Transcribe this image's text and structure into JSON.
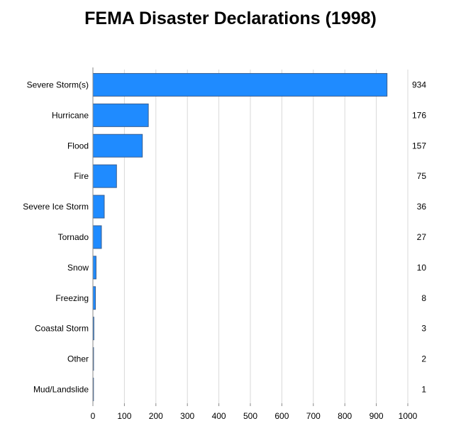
{
  "chart_data": {
    "type": "bar",
    "orientation": "horizontal",
    "title": "FEMA Disaster Declarations (1998)",
    "xlabel": "",
    "ylabel": "",
    "categories": [
      "Severe Storm(s)",
      "Hurricane",
      "Flood",
      "Fire",
      "Severe Ice Storm",
      "Tornado",
      "Snow",
      "Freezing",
      "Coastal Storm",
      "Other",
      "Mud/Landslide"
    ],
    "values": [
      934,
      176,
      157,
      75,
      36,
      27,
      10,
      8,
      3,
      2,
      1
    ],
    "value_labels": [
      "934",
      "176",
      "157",
      "75",
      "36",
      "27",
      "10",
      "8",
      "3",
      "2",
      "1"
    ],
    "xlim": [
      0,
      1000
    ],
    "x_ticks": [
      0,
      100,
      200,
      300,
      400,
      500,
      600,
      700,
      800,
      900,
      1000
    ],
    "x_tick_labels": [
      "0",
      "100",
      "200",
      "300",
      "400",
      "500",
      "600",
      "700",
      "800",
      "900",
      "1000"
    ],
    "grid": "vertical",
    "legend": "none",
    "colors": {
      "bar_fill": "#1f8bff",
      "bar_stroke": "#3a5f8f",
      "grid": "#d9d9d9",
      "axis": "#888888"
    }
  }
}
